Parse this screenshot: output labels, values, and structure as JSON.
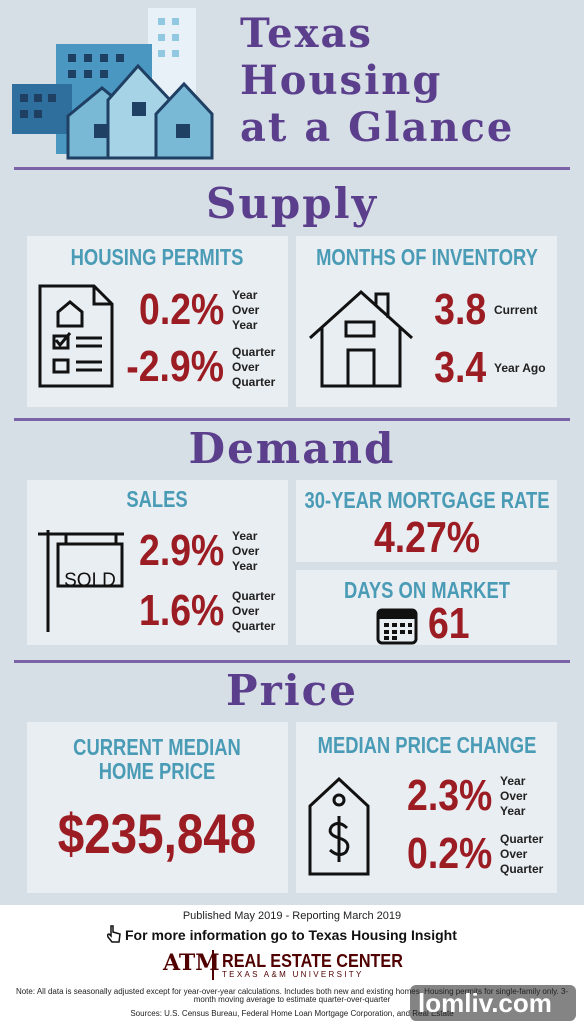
{
  "header": {
    "title_lines": [
      "Texas",
      "Housing",
      "at a Glance"
    ]
  },
  "supply": {
    "heading": "Supply",
    "permits": {
      "title": "HOUSING PERMITS",
      "stats": [
        {
          "value": "0.2%",
          "label": [
            "Year",
            "Over",
            "Year"
          ]
        },
        {
          "value": "-2.9%",
          "label": [
            "Quarter",
            "Over",
            "Quarter"
          ]
        }
      ]
    },
    "inventory": {
      "title": "MONTHS OF INVENTORY",
      "stats": [
        {
          "value": "3.8",
          "label": [
            "Current"
          ]
        },
        {
          "value": "3.4",
          "label": [
            "Year Ago"
          ]
        }
      ]
    }
  },
  "demand": {
    "heading": "Demand",
    "sales": {
      "title": "SALES",
      "sign": "SOLD",
      "stats": [
        {
          "value": "2.9%",
          "label": [
            "Year",
            "Over",
            "Year"
          ]
        },
        {
          "value": "1.6%",
          "label": [
            "Quarter",
            "Over",
            "Quarter"
          ]
        }
      ]
    },
    "mortgage": {
      "title": "30-YEAR MORTGAGE RATE",
      "value": "4.27%"
    },
    "days": {
      "title": "DAYS ON MARKET",
      "value": "61"
    }
  },
  "price": {
    "heading": "Price",
    "median": {
      "title_lines": [
        "CURRENT MEDIAN",
        "HOME PRICE"
      ],
      "value": "$235,848"
    },
    "change": {
      "title": "MEDIAN PRICE CHANGE",
      "stats": [
        {
          "value": "2.3%",
          "label": [
            "Year",
            "Over",
            "Year"
          ]
        },
        {
          "value": "0.2%",
          "label": [
            "Quarter",
            "Over",
            "Quarter"
          ]
        }
      ]
    }
  },
  "footer": {
    "published": "Published May 2019 - Reporting March 2019",
    "more_info": "For more information go to Texas Housing Insight",
    "logo_mark": "ATM",
    "logo_name": "REAL ESTATE CENTER",
    "logo_sub": "TEXAS A&M UNIVERSITY",
    "note": "Note: All data is seasonally adjusted except for year-over-year calculations. Includes both new and existing homes. Housing permits for single-family only. 3-month moving average to estimate quarter-over-quarter",
    "sources": "Sources: U.S. Census Bureau, Federal Home Loan Mortgage Corporation, and Real Estate"
  },
  "watermark": "lomliv.com"
}
